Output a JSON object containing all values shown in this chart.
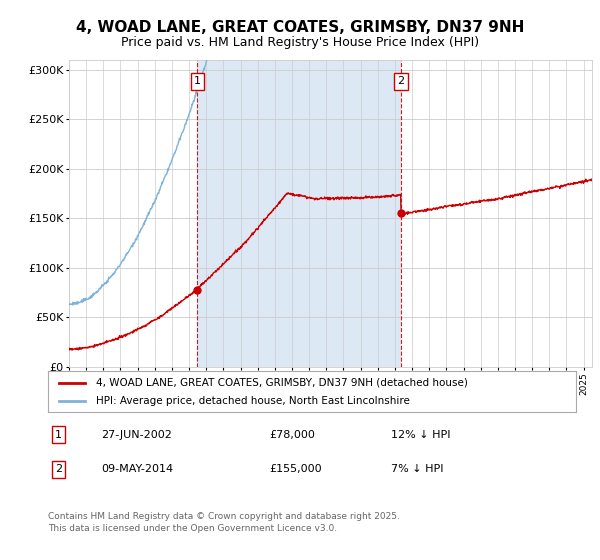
{
  "title1": "4, WOAD LANE, GREAT COATES, GRIMSBY, DN37 9NH",
  "title2": "Price paid vs. HM Land Registry's House Price Index (HPI)",
  "ylabel_ticks": [
    "£0",
    "£50K",
    "£100K",
    "£150K",
    "£200K",
    "£250K",
    "£300K"
  ],
  "ytick_values": [
    0,
    50000,
    100000,
    150000,
    200000,
    250000,
    300000
  ],
  "ylim": [
    0,
    310000
  ],
  "xlim_start": 1995.0,
  "xlim_end": 2025.5,
  "fig_bg_color": "#ffffff",
  "plot_bg_color": "#ffffff",
  "shaded_bg_color": "#dce9f5",
  "grid_color": "#cccccc",
  "hpi_color": "#7eb3d8",
  "price_color": "#cc0000",
  "sale1_date": 2002.486,
  "sale1_price": 78000,
  "sale2_date": 2014.354,
  "sale2_price": 155000,
  "legend_label1": "4, WOAD LANE, GREAT COATES, GRIMSBY, DN37 9NH (detached house)",
  "legend_label2": "HPI: Average price, detached house, North East Lincolnshire",
  "annotation1_label": "27-JUN-2002",
  "annotation1_price": "£78,000",
  "annotation1_hpi": "12% ↓ HPI",
  "annotation2_label": "09-MAY-2014",
  "annotation2_price": "£155,000",
  "annotation2_hpi": "7% ↓ HPI",
  "footer": "Contains HM Land Registry data © Crown copyright and database right 2025.\nThis data is licensed under the Open Government Licence v3.0.",
  "title_fontsize": 11,
  "subtitle_fontsize": 9
}
